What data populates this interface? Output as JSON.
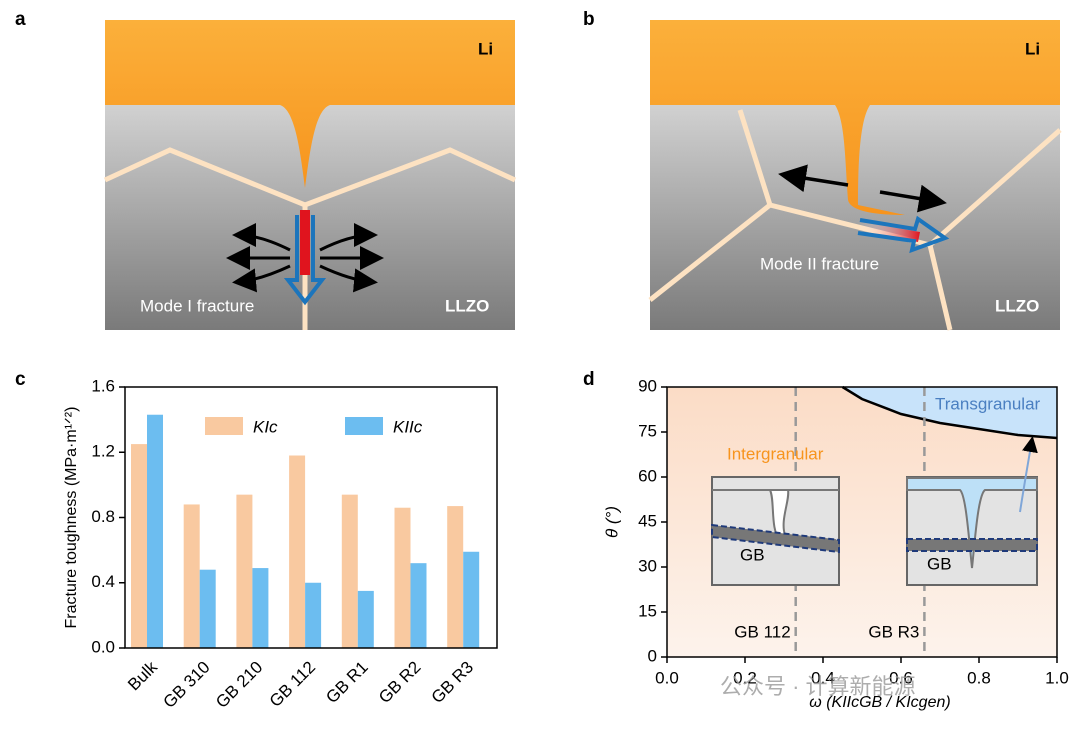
{
  "panels": {
    "a": {
      "letter": "a",
      "top": "Li",
      "caption": "Mode I fracture",
      "bottom": "LLZO"
    },
    "b": {
      "letter": "b",
      "top": "Li",
      "caption": "Mode II fracture",
      "bottom": "LLZO"
    }
  },
  "watermark": "公众号 · 计算新能源",
  "chart_data": [
    {
      "type": "bar",
      "letter": "c",
      "y_label": "Fracture toughness (MPa·m¹ᐟ²)",
      "categories": [
        "Bulk",
        "GB 310",
        "GB 210",
        "GB 112",
        "GB R1",
        "GB R2",
        "GB R3"
      ],
      "series": [
        {
          "name": "KIc",
          "color": "#f9c9a0",
          "values": [
            1.25,
            0.88,
            0.94,
            1.18,
            0.94,
            0.86,
            0.87
          ]
        },
        {
          "name": "KIIc",
          "color": "#6cbdf0",
          "values": [
            1.43,
            0.48,
            0.49,
            0.4,
            0.35,
            0.52,
            0.59
          ]
        }
      ],
      "ylim": [
        0,
        1.6
      ],
      "yticks": [
        {
          "value": 0,
          "label": "0.0"
        },
        0.4,
        0.8,
        1.2,
        1.6
      ]
    },
    {
      "type": "region",
      "letter": "d",
      "x_label": "ω (KIIcGB / KIcgen)",
      "y_label": "θ (°)",
      "x": [
        0.45,
        0.5,
        0.6,
        0.7,
        0.8,
        0.9,
        1.0
      ],
      "values": [
        90,
        86,
        81,
        78,
        76,
        74,
        73
      ],
      "color": "#000000",
      "regions": [
        "Intergranular",
        "Transgranular"
      ],
      "markers": [
        {
          "x": 0.33,
          "label": "GB 112"
        },
        {
          "x": 0.66,
          "label": "GB R3"
        }
      ],
      "inset_labels": [
        "GB",
        "GB"
      ],
      "xlim": [
        0,
        1.0
      ],
      "ylim": [
        0,
        90
      ],
      "xticks": [
        {
          "value": 0,
          "label": "0.0"
        },
        0.2,
        0.4,
        0.6,
        0.8,
        {
          "value": 1.0,
          "label": "1.0"
        }
      ],
      "yticks": [
        0,
        15,
        30,
        45,
        60,
        75,
        90
      ]
    }
  ]
}
